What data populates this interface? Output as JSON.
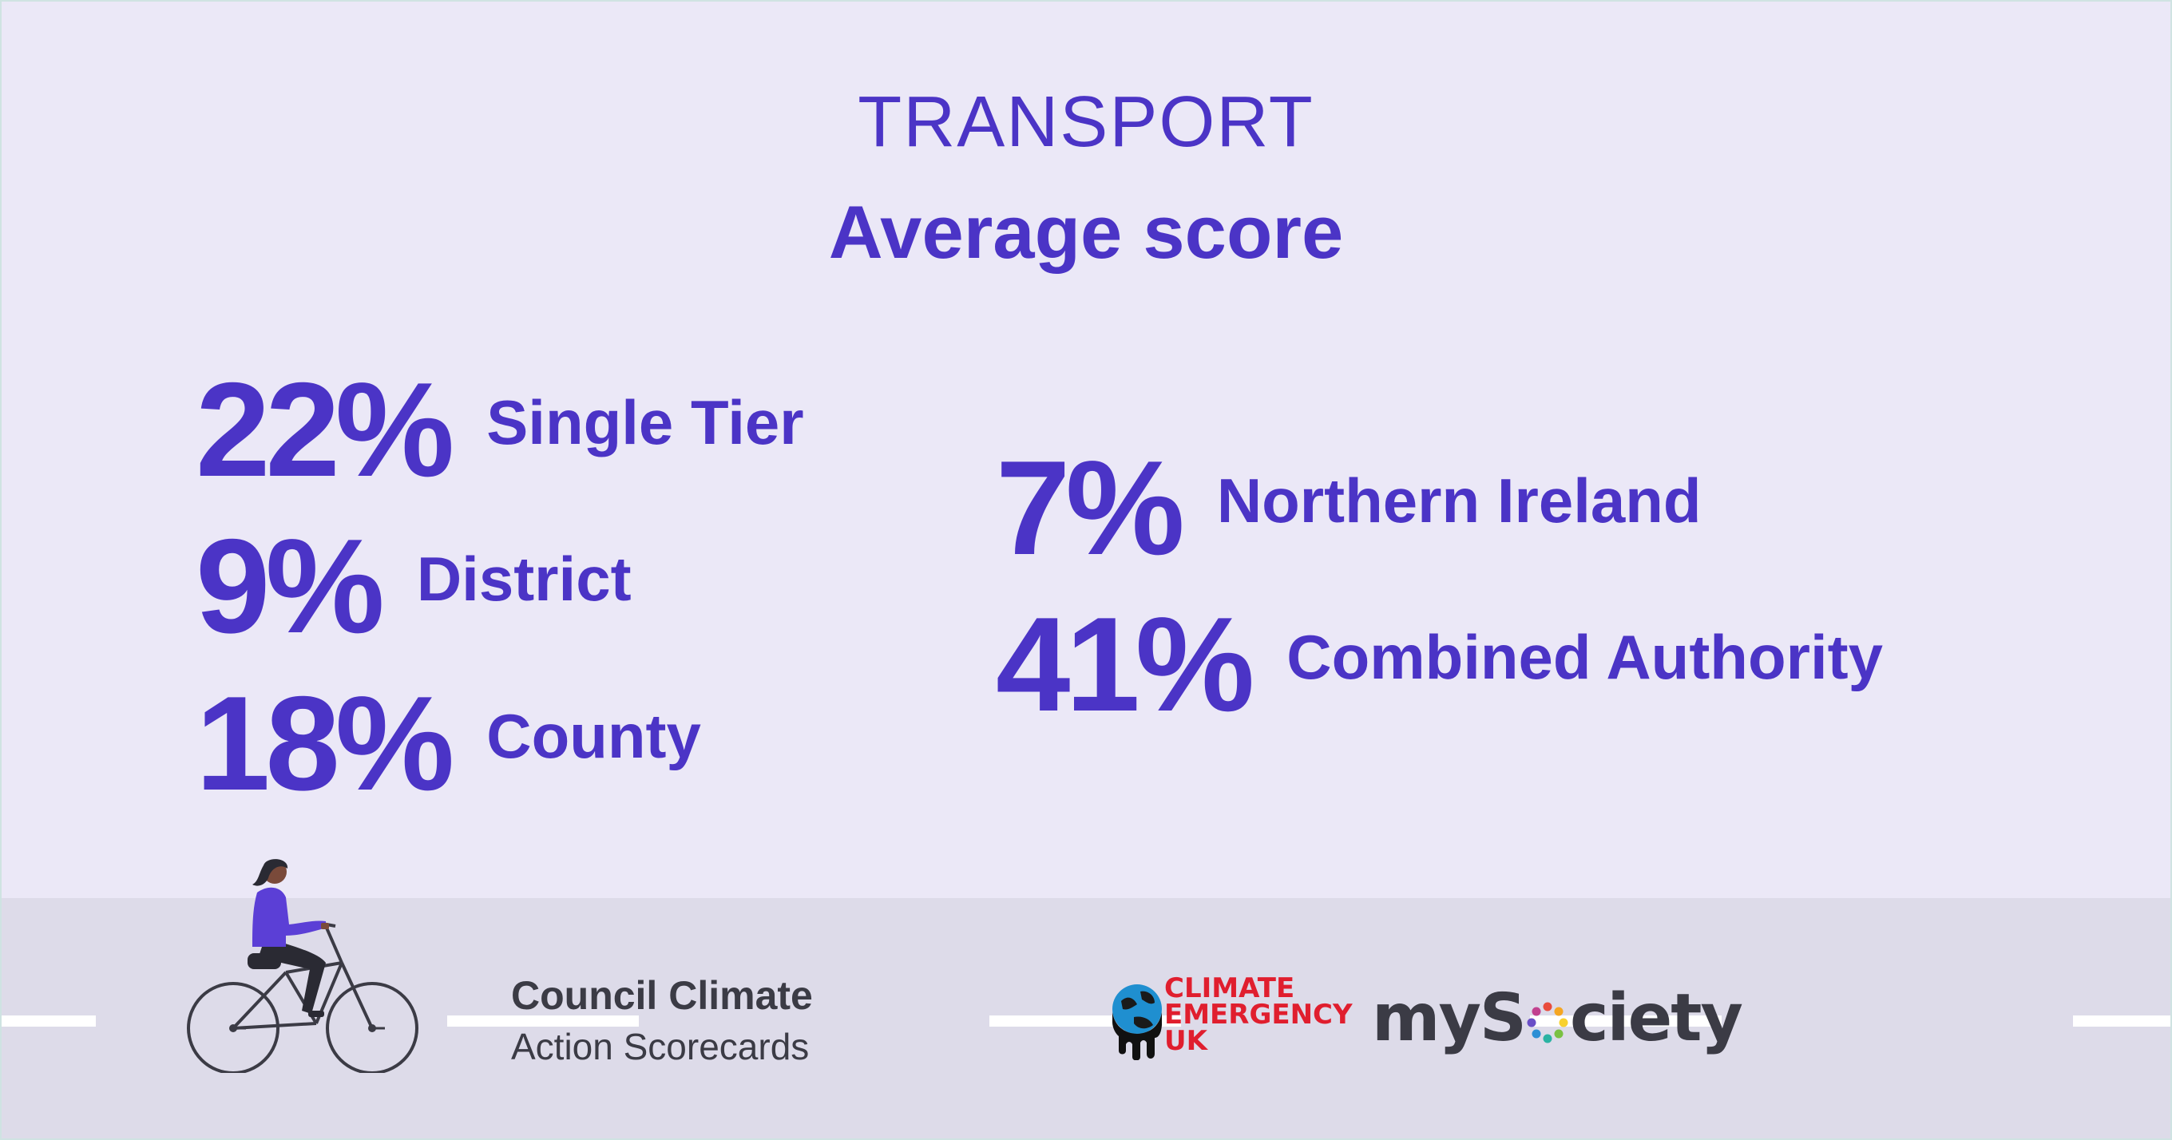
{
  "header": {
    "section": "TRANSPORT",
    "subtitle": "Average score"
  },
  "stats": [
    {
      "percent": "22%",
      "label": "Single Tier"
    },
    {
      "percent": "9%",
      "label": "District"
    },
    {
      "percent": "18%",
      "label": "County"
    },
    {
      "percent": "7%",
      "label": "Northern Ireland"
    },
    {
      "percent": "41%",
      "label": "Combined Authority"
    }
  ],
  "footer": {
    "brand_line1": "Council Climate",
    "brand_line2": "Action Scorecards",
    "partner1_line1": "CLIMATE",
    "partner1_line2": "EMERGENCY",
    "partner1_line3": "UK",
    "partner2_left": "myS",
    "partner2_right": "ciety"
  },
  "illustration": "cyclist-icon",
  "colors": {
    "accent": "#4b34c6",
    "background": "#ebe8f7",
    "road": "#dddbe9",
    "brand_text": "#3b3b45",
    "ceuk_red": "#e01e2e"
  }
}
